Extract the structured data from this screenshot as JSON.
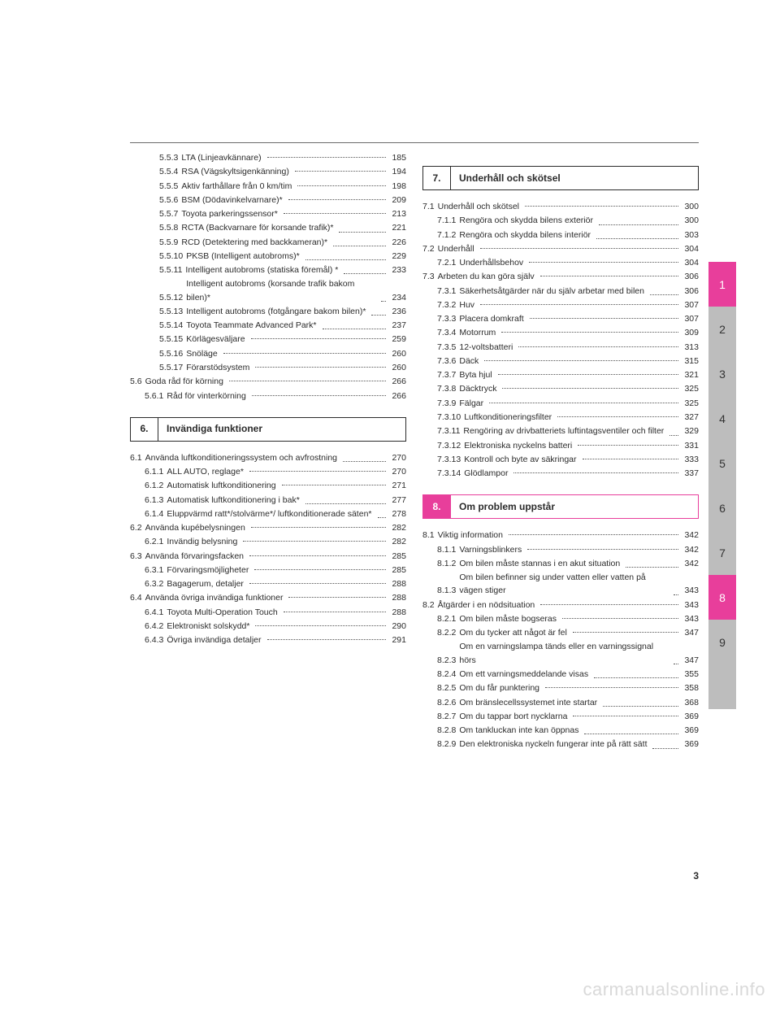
{
  "page_number": "3",
  "watermark": "carmanualsonline.info",
  "tabs": [
    {
      "label": "1",
      "active": true
    },
    {
      "label": "2",
      "active": false
    },
    {
      "label": "3",
      "active": false
    },
    {
      "label": "4",
      "active": false
    },
    {
      "label": "5",
      "active": false
    },
    {
      "label": "6",
      "active": false
    },
    {
      "label": "7",
      "active": false
    },
    {
      "label": "8",
      "active": true
    },
    {
      "label": "9",
      "active": false
    },
    {
      "label": "",
      "active": false
    }
  ],
  "left": {
    "entries": [
      {
        "n": "5.5.3",
        "t": "LTA (Linjeavkännare)",
        "p": "185",
        "i": 2
      },
      {
        "n": "5.5.4",
        "t": "RSA (Vägskyltsigenkänning)",
        "p": "194",
        "i": 2
      },
      {
        "n": "5.5.5",
        "t": "Aktiv farthållare från 0 km/tim",
        "p": "198",
        "i": 2
      },
      {
        "n": "5.5.6",
        "t": "BSM (Dödavinkelvarnare)*",
        "p": "209",
        "i": 2
      },
      {
        "n": "5.5.7",
        "t": "Toyota parkeringssensor*",
        "p": "213",
        "i": 2
      },
      {
        "n": "5.5.8",
        "t": "RCTA (Backvarnare för korsande trafik)*",
        "p": "221",
        "i": 2,
        "multi": true
      },
      {
        "n": "5.5.9",
        "t": "RCD (Detektering med backkameran)*",
        "p": "226",
        "i": 2,
        "multi": true
      },
      {
        "n": "5.5.10",
        "t": "PKSB (Intelligent autobroms)*",
        "p": "229",
        "i": 2,
        "multi": true
      },
      {
        "n": "5.5.11",
        "t": "Intelligent autobroms (statiska föremål) *",
        "p": "233",
        "i": 2,
        "multi": true
      },
      {
        "n": "5.5.12",
        "t": "Intelligent autobroms (korsande trafik bakom bilen)*",
        "p": "234",
        "i": 2,
        "multi": true
      },
      {
        "n": "5.5.13",
        "t": "Intelligent autobroms (fotgångare bakom bilen)*",
        "p": "236",
        "i": 2,
        "multi": true
      },
      {
        "n": "5.5.14",
        "t": "Toyota Teammate Advanced Park*",
        "p": "237",
        "i": 2,
        "multi": true
      },
      {
        "n": "5.5.15",
        "t": "Körlägesväljare",
        "p": "259",
        "i": 2
      },
      {
        "n": "5.5.16",
        "t": "Snöläge",
        "p": "260",
        "i": 2
      },
      {
        "n": "5.5.17",
        "t": "Förarstödsystem",
        "p": "260",
        "i": 2
      },
      {
        "n": "5.6",
        "t": "Goda råd för körning",
        "p": "266",
        "i": 0
      },
      {
        "n": "5.6.1",
        "t": "Råd för vinterkörning",
        "p": "266",
        "i": 1
      }
    ],
    "section6": {
      "num": "6.",
      "title": "Invändiga funktioner"
    },
    "entries6": [
      {
        "n": "6.1",
        "t": "Använda luftkonditioneringssystem och avfrostning",
        "p": "270",
        "i": 0,
        "multi": true
      },
      {
        "n": "6.1.1",
        "t": "ALL AUTO, reglage*",
        "p": "270",
        "i": 1
      },
      {
        "n": "6.1.2",
        "t": "Automatisk luftkonditionering",
        "p": "271",
        "i": 1
      },
      {
        "n": "6.1.3",
        "t": "Automatisk luftkonditionering i bak*",
        "p": "277",
        "i": 1,
        "multi": true
      },
      {
        "n": "6.1.4",
        "t": "Eluppvärmd ratt*/stolvärme*/ luftkonditionerade säten*",
        "p": "278",
        "i": 1,
        "multi": true
      },
      {
        "n": "6.2",
        "t": "Använda kupébelysningen",
        "p": "282",
        "i": 0
      },
      {
        "n": "6.2.1",
        "t": "Invändig belysning",
        "p": "282",
        "i": 1
      },
      {
        "n": "6.3",
        "t": "Använda förvaringsfacken",
        "p": "285",
        "i": 0
      },
      {
        "n": "6.3.1",
        "t": "Förvaringsmöjligheter",
        "p": "285",
        "i": 1
      },
      {
        "n": "6.3.2",
        "t": "Bagagerum, detaljer",
        "p": "288",
        "i": 1
      },
      {
        "n": "6.4",
        "t": "Använda övriga invändiga funktioner",
        "p": "288",
        "i": 0
      },
      {
        "n": "6.4.1",
        "t": "Toyota Multi-Operation Touch",
        "p": "288",
        "i": 1
      },
      {
        "n": "6.4.2",
        "t": "Elektroniskt solskydd*",
        "p": "290",
        "i": 1
      },
      {
        "n": "6.4.3",
        "t": "Övriga invändiga detaljer",
        "p": "291",
        "i": 1
      }
    ]
  },
  "right": {
    "section7": {
      "num": "7.",
      "title": "Underhåll och skötsel"
    },
    "entries7": [
      {
        "n": "7.1",
        "t": "Underhåll och skötsel",
        "p": "300",
        "i": 0
      },
      {
        "n": "7.1.1",
        "t": "Rengöra och skydda bilens exteriör",
        "p": "300",
        "i": 1,
        "multi": true
      },
      {
        "n": "7.1.2",
        "t": "Rengöra och skydda bilens interiör",
        "p": "303",
        "i": 1,
        "multi": true
      },
      {
        "n": "7.2",
        "t": "Underhåll",
        "p": "304",
        "i": 0
      },
      {
        "n": "7.2.1",
        "t": "Underhållsbehov",
        "p": "304",
        "i": 1
      },
      {
        "n": "7.3",
        "t": "Arbeten du kan göra själv",
        "p": "306",
        "i": 0
      },
      {
        "n": "7.3.1",
        "t": "Säkerhetsåtgärder när du själv arbetar med bilen",
        "p": "306",
        "i": 1,
        "multi": true
      },
      {
        "n": "7.3.2",
        "t": "Huv",
        "p": "307",
        "i": 1
      },
      {
        "n": "7.3.3",
        "t": "Placera domkraft",
        "p": "307",
        "i": 1
      },
      {
        "n": "7.3.4",
        "t": "Motorrum",
        "p": "309",
        "i": 1
      },
      {
        "n": "7.3.5",
        "t": "12-voltsbatteri",
        "p": "313",
        "i": 1
      },
      {
        "n": "7.3.6",
        "t": "Däck",
        "p": "315",
        "i": 1
      },
      {
        "n": "7.3.7",
        "t": "Byta hjul",
        "p": "321",
        "i": 1
      },
      {
        "n": "7.3.8",
        "t": "Däcktryck",
        "p": "325",
        "i": 1
      },
      {
        "n": "7.3.9",
        "t": "Fälgar",
        "p": "325",
        "i": 1
      },
      {
        "n": "7.3.10",
        "t": "Luftkonditioneringsfilter",
        "p": "327",
        "i": 1
      },
      {
        "n": "7.3.11",
        "t": "Rengöring av drivbatteriets luftintagsventiler och filter",
        "p": "329",
        "i": 1,
        "multi": true
      },
      {
        "n": "7.3.12",
        "t": "Elektroniska nyckelns batteri",
        "p": "331",
        "i": 1
      },
      {
        "n": "7.3.13",
        "t": "Kontroll och byte av säkringar",
        "p": "333",
        "i": 1
      },
      {
        "n": "7.3.14",
        "t": "Glödlampor",
        "p": "337",
        "i": 1
      }
    ],
    "section8": {
      "num": "8.",
      "title": "Om problem uppstår",
      "highlight": true
    },
    "entries8": [
      {
        "n": "8.1",
        "t": "Viktig information",
        "p": "342",
        "i": 0
      },
      {
        "n": "8.1.1",
        "t": "Varningsblinkers",
        "p": "342",
        "i": 1
      },
      {
        "n": "8.1.2",
        "t": "Om bilen måste stannas i en akut situation",
        "p": "342",
        "i": 1,
        "multi": true
      },
      {
        "n": "8.1.3",
        "t": "Om bilen befinner sig under vatten eller vatten på vägen stiger",
        "p": "343",
        "i": 1,
        "multi": true
      },
      {
        "n": "8.2",
        "t": "Åtgärder i en nödsituation",
        "p": "343",
        "i": 0
      },
      {
        "n": "8.2.1",
        "t": "Om bilen måste bogseras",
        "p": "343",
        "i": 1
      },
      {
        "n": "8.2.2",
        "t": "Om du tycker att något är fel",
        "p": "347",
        "i": 1
      },
      {
        "n": "8.2.3",
        "t": "Om en varningslampa tänds eller en varningssignal hörs",
        "p": "347",
        "i": 1,
        "multi": true
      },
      {
        "n": "8.2.4",
        "t": "Om ett varningsmeddelande visas",
        "p": "355",
        "i": 1,
        "multi": true
      },
      {
        "n": "8.2.5",
        "t": "Om du får punktering",
        "p": "358",
        "i": 1
      },
      {
        "n": "8.2.6",
        "t": "Om bränslecellssystemet inte startar",
        "p": "368",
        "i": 1,
        "multi": true
      },
      {
        "n": "8.2.7",
        "t": "Om du tappar bort nycklarna",
        "p": "369",
        "i": 1
      },
      {
        "n": "8.2.8",
        "t": "Om tankluckan inte kan öppnas",
        "p": "369",
        "i": 1,
        "multi": true
      },
      {
        "n": "8.2.9",
        "t": "Den elektroniska nyckeln fungerar inte på rätt sätt",
        "p": "369",
        "i": 1,
        "multi": true
      }
    ]
  }
}
